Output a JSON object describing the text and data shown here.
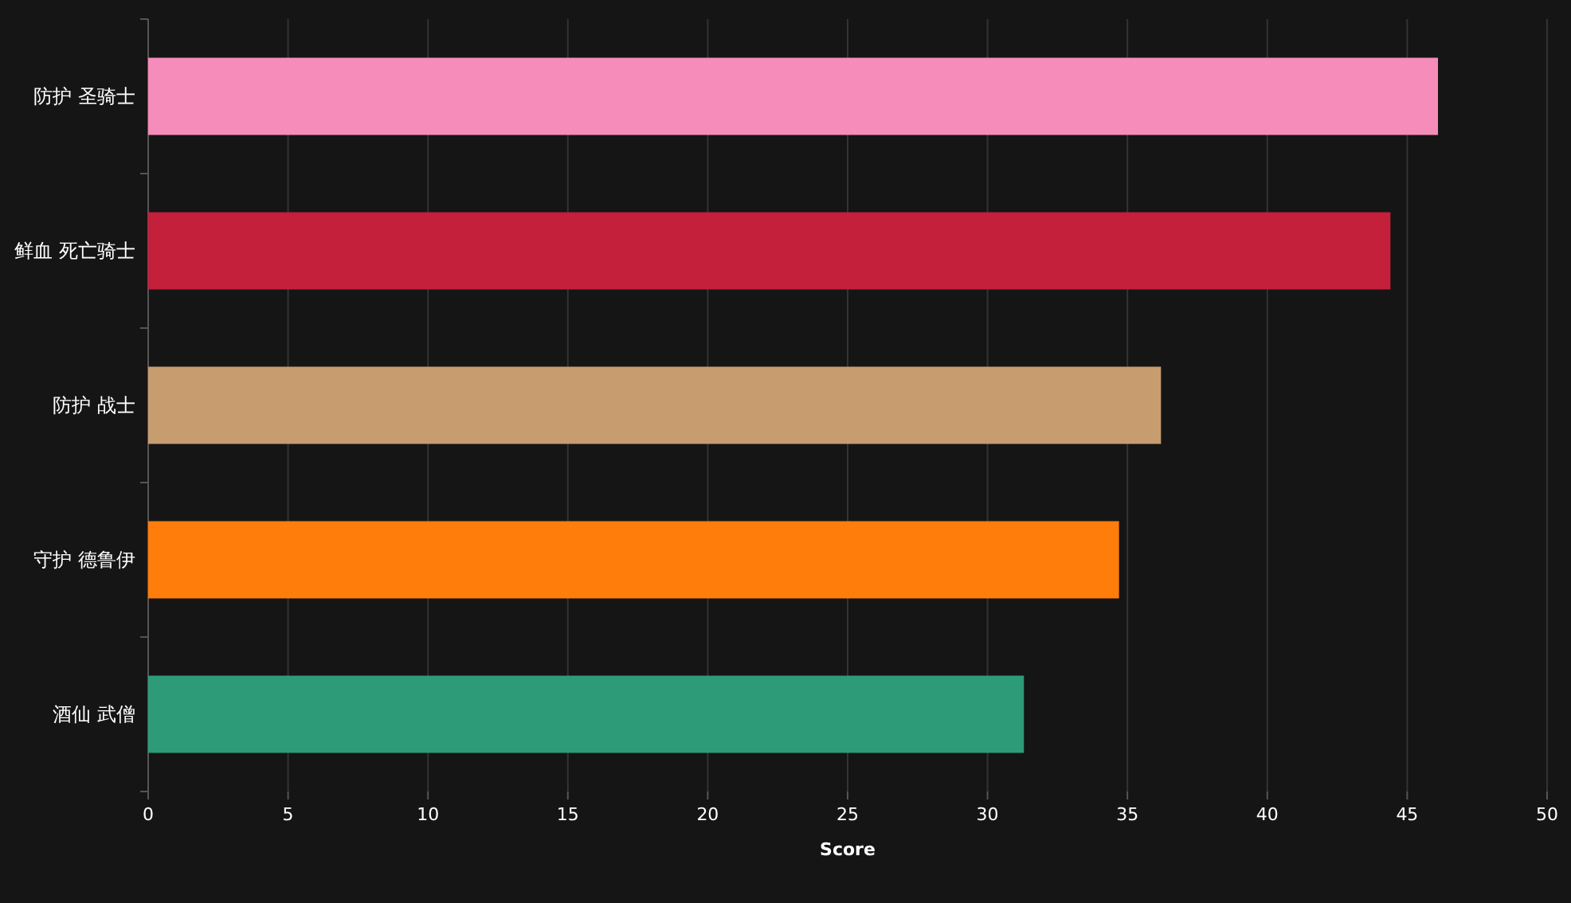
{
  "chart_data": {
    "type": "bar",
    "orientation": "horizontal",
    "xlabel": "Score",
    "categories": [
      "防护 圣骑士",
      "鲜血 死亡骑士",
      "防护 战士",
      "守护 德鲁伊",
      "酒仙 武僧"
    ],
    "values": [
      46.1,
      44.4,
      36.2,
      34.7,
      31.3
    ],
    "colors": [
      "#f58cba",
      "#c41f3b",
      "#c79c6e",
      "#ff7d0a",
      "#2d9b78"
    ],
    "xlim": [
      0,
      50
    ],
    "xticks": [
      0,
      5,
      10,
      15,
      20,
      25,
      30,
      35,
      40,
      45,
      50
    ],
    "grid": "x"
  }
}
